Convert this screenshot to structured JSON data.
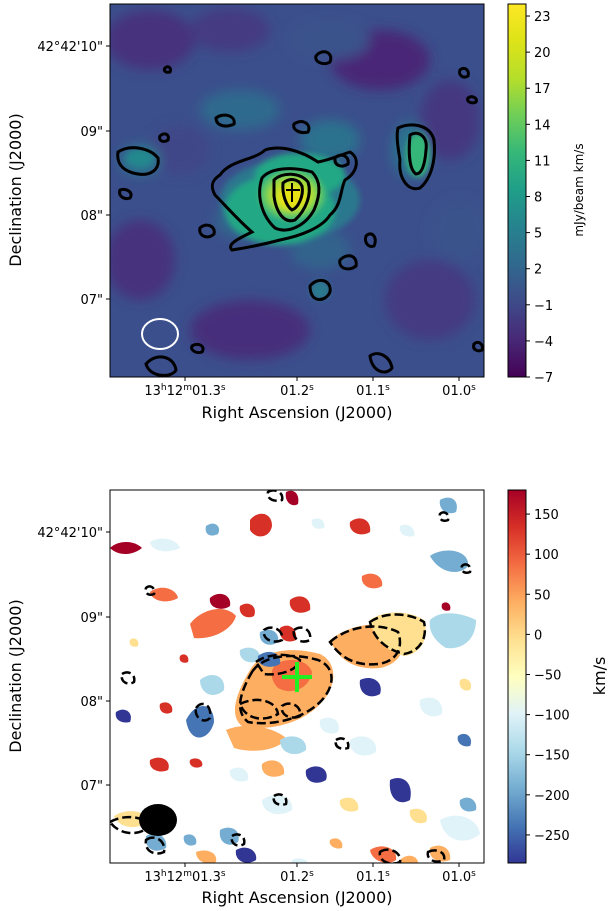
{
  "chart_data": [
    {
      "type": "heatmap",
      "title": "",
      "xlabel": "Right Ascension (J2000)",
      "ylabel": "Declination (J2000)",
      "x_ticks": [
        {
          "label": "13h12m01.3s",
          "main": "13",
          "h": "h",
          "m_val": "12",
          "m": "m",
          "sec": "01.3",
          "s": "s"
        },
        {
          "label": "01.2s",
          "main": "01.2",
          "s": "s"
        },
        {
          "label": "01.1s",
          "main": "01.1",
          "s": "s"
        },
        {
          "label": "01.0s",
          "main": "01.0",
          "s": "s"
        }
      ],
      "y_ticks": [
        "42°42'10\"",
        "09\"",
        "08\"",
        "07\""
      ],
      "colorbar": {
        "label": "mJy/beam km/s",
        "ticks": [
          "23",
          "20",
          "17",
          "14",
          "11",
          "8",
          "5",
          "2",
          "−1",
          "−4",
          "−7"
        ],
        "tick_values": [
          23,
          20,
          17,
          14,
          11,
          8,
          5,
          2,
          -1,
          -4,
          -7
        ],
        "range": [
          -7,
          24
        ],
        "colormap": "viridis"
      },
      "contours": {
        "color": "#000000",
        "style": "solid"
      },
      "beam": {
        "color": "#ffffff",
        "style": "outline"
      },
      "marker": {
        "symbol": "+",
        "color": "#000000"
      }
    },
    {
      "type": "heatmap",
      "title": "",
      "xlabel": "Right Ascension (J2000)",
      "ylabel": "Declination (J2000)",
      "x_ticks": [
        {
          "label": "13h12m01.3s",
          "main": "13",
          "h": "h",
          "m_val": "12",
          "m": "m",
          "sec": "01.3",
          "s": "s"
        },
        {
          "label": "01.2s",
          "main": "01.2",
          "s": "s"
        },
        {
          "label": "01.1s",
          "main": "01.1",
          "s": "s"
        },
        {
          "label": "01.0s",
          "main": "01.0",
          "s": "s"
        }
      ],
      "y_ticks": [
        "42°42'10\"",
        "09\"",
        "08\"",
        "07\""
      ],
      "colorbar": {
        "label": "km/s",
        "ticks": [
          "150",
          "100",
          "50",
          "0",
          "−50",
          "−100",
          "−150",
          "−200",
          "−250"
        ],
        "tick_values": [
          150,
          100,
          50,
          0,
          -50,
          -100,
          -150,
          -200,
          -250
        ],
        "range": [
          -285,
          180
        ],
        "colormap": "RdYlBu_r"
      },
      "contours": {
        "color": "#000000",
        "style": "dashed"
      },
      "beam": {
        "color": "#000000",
        "style": "filled"
      },
      "marker": {
        "symbol": "+",
        "color": "#22ee22"
      }
    }
  ]
}
